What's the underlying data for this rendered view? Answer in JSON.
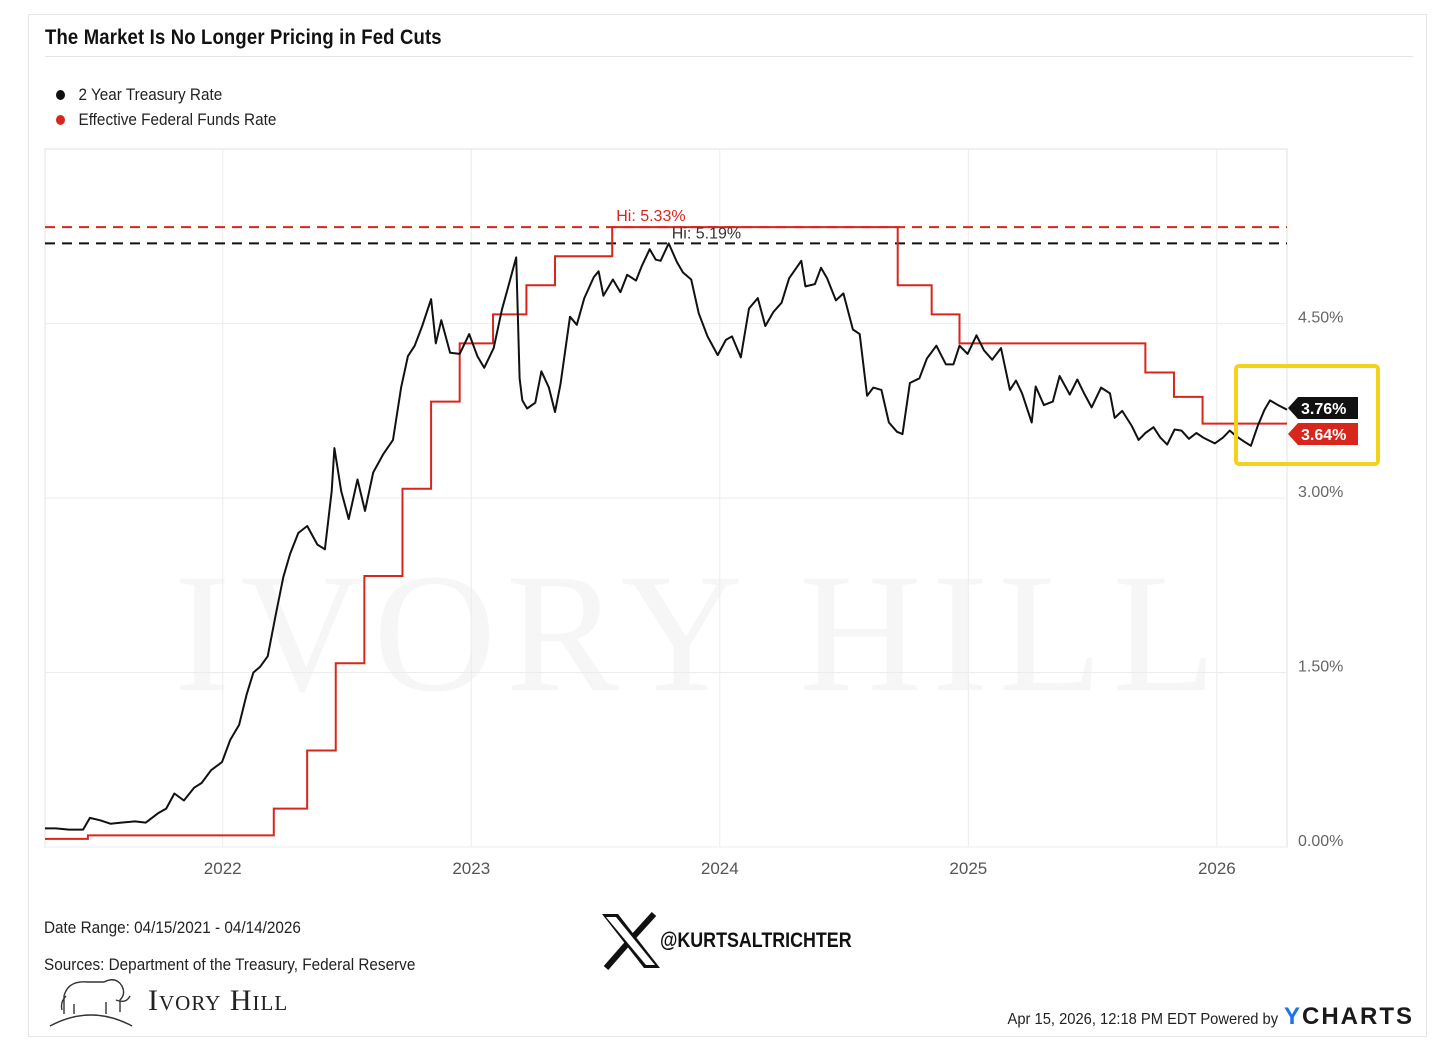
{
  "title": "The Market Is No Longer Pricing in Fed Cuts",
  "footer": {
    "date_range": "Date Range: 04/15/2021 - 04/14/2026",
    "sources": "Sources: Department of the Treasury, Federal Reserve",
    "brand": "Ivory Hill",
    "watermark": "IVORY HILL",
    "social_handle": "@KURTSALTRICHTER",
    "timestamp": "Apr 15, 2026, 12:18 PM EDT Powered by",
    "powered_by": "YCHARTS"
  },
  "colors": {
    "treasury": "#111111",
    "fed_funds": "#d9261c",
    "highlight_box": "#f2d21b",
    "grid": "#eeeeee"
  },
  "chart_data": {
    "type": "line",
    "title": "The Market Is No Longer Pricing in Fed Cuts",
    "xlim": [
      "2021-04-15",
      "2026-04-14"
    ],
    "ylim": [
      0,
      6.0
    ],
    "grid": true,
    "legend_placement": "top-left",
    "x_ticks": [
      "2022",
      "2023",
      "2024",
      "2025",
      "2026"
    ],
    "y_ticks": [
      {
        "value": 0,
        "label": "0.00%"
      },
      {
        "value": 1.5,
        "label": "1.50%"
      },
      {
        "value": 3.0,
        "label": "3.00%"
      },
      {
        "value": 4.5,
        "label": "4.50%"
      }
    ],
    "series": [
      {
        "name": "2 Year Treasury Rate",
        "color": "#111111",
        "high": {
          "value": 5.19,
          "label": "Hi: 5.19%"
        },
        "last": {
          "value": 3.76,
          "label": "3.76%"
        },
        "points": [
          [
            "2021-04-15",
            0.16
          ],
          [
            "2021-05-01",
            0.16
          ],
          [
            "2021-05-20",
            0.15
          ],
          [
            "2021-06-10",
            0.15
          ],
          [
            "2021-06-20",
            0.25
          ],
          [
            "2021-07-05",
            0.23
          ],
          [
            "2021-07-20",
            0.2
          ],
          [
            "2021-08-05",
            0.21
          ],
          [
            "2021-08-25",
            0.22
          ],
          [
            "2021-09-10",
            0.21
          ],
          [
            "2021-09-28",
            0.29
          ],
          [
            "2021-10-10",
            0.33
          ],
          [
            "2021-10-22",
            0.46
          ],
          [
            "2021-11-05",
            0.4
          ],
          [
            "2021-11-20",
            0.51
          ],
          [
            "2021-12-01",
            0.55
          ],
          [
            "2021-12-15",
            0.66
          ],
          [
            "2021-12-31",
            0.73
          ],
          [
            "2022-01-12",
            0.92
          ],
          [
            "2022-01-25",
            1.05
          ],
          [
            "2022-02-05",
            1.31
          ],
          [
            "2022-02-15",
            1.5
          ],
          [
            "2022-02-25",
            1.55
          ],
          [
            "2022-03-08",
            1.64
          ],
          [
            "2022-03-20",
            2.0
          ],
          [
            "2022-03-31",
            2.32
          ],
          [
            "2022-04-10",
            2.52
          ],
          [
            "2022-04-22",
            2.7
          ],
          [
            "2022-05-05",
            2.76
          ],
          [
            "2022-05-20",
            2.6
          ],
          [
            "2022-05-31",
            2.56
          ],
          [
            "2022-06-10",
            3.06
          ],
          [
            "2022-06-14",
            3.43
          ],
          [
            "2022-06-24",
            3.06
          ],
          [
            "2022-07-05",
            2.82
          ],
          [
            "2022-07-18",
            3.16
          ],
          [
            "2022-07-29",
            2.89
          ],
          [
            "2022-08-10",
            3.22
          ],
          [
            "2022-08-25",
            3.38
          ],
          [
            "2022-09-08",
            3.5
          ],
          [
            "2022-09-20",
            3.95
          ],
          [
            "2022-09-30",
            4.22
          ],
          [
            "2022-10-10",
            4.31
          ],
          [
            "2022-10-21",
            4.48
          ],
          [
            "2022-11-03",
            4.71
          ],
          [
            "2022-11-10",
            4.33
          ],
          [
            "2022-11-18",
            4.53
          ],
          [
            "2022-12-01",
            4.25
          ],
          [
            "2022-12-15",
            4.24
          ],
          [
            "2022-12-29",
            4.41
          ],
          [
            "2023-01-10",
            4.22
          ],
          [
            "2023-01-20",
            4.12
          ],
          [
            "2023-02-03",
            4.29
          ],
          [
            "2023-02-15",
            4.62
          ],
          [
            "2023-02-24",
            4.81
          ],
          [
            "2023-03-08",
            5.07
          ],
          [
            "2023-03-13",
            4.03
          ],
          [
            "2023-03-17",
            3.84
          ],
          [
            "2023-03-24",
            3.77
          ],
          [
            "2023-04-05",
            3.82
          ],
          [
            "2023-04-14",
            4.09
          ],
          [
            "2023-04-25",
            3.95
          ],
          [
            "2023-05-04",
            3.74
          ],
          [
            "2023-05-12",
            3.98
          ],
          [
            "2023-05-26",
            4.56
          ],
          [
            "2023-06-05",
            4.49
          ],
          [
            "2023-06-16",
            4.72
          ],
          [
            "2023-06-30",
            4.9
          ],
          [
            "2023-07-07",
            4.95
          ],
          [
            "2023-07-14",
            4.74
          ],
          [
            "2023-07-28",
            4.88
          ],
          [
            "2023-08-08",
            4.77
          ],
          [
            "2023-08-18",
            4.92
          ],
          [
            "2023-08-31",
            4.87
          ],
          [
            "2023-09-08",
            4.99
          ],
          [
            "2023-09-20",
            5.14
          ],
          [
            "2023-09-29",
            5.05
          ],
          [
            "2023-10-06",
            5.04
          ],
          [
            "2023-10-18",
            5.19
          ],
          [
            "2023-10-30",
            5.03
          ],
          [
            "2023-11-08",
            4.94
          ],
          [
            "2023-11-20",
            4.88
          ],
          [
            "2023-12-01",
            4.59
          ],
          [
            "2023-12-14",
            4.39
          ],
          [
            "2023-12-29",
            4.23
          ],
          [
            "2024-01-10",
            4.36
          ],
          [
            "2024-01-19",
            4.39
          ],
          [
            "2024-02-01",
            4.21
          ],
          [
            "2024-02-13",
            4.63
          ],
          [
            "2024-02-26",
            4.72
          ],
          [
            "2024-03-08",
            4.48
          ],
          [
            "2024-03-20",
            4.6
          ],
          [
            "2024-04-01",
            4.68
          ],
          [
            "2024-04-12",
            4.89
          ],
          [
            "2024-04-30",
            5.04
          ],
          [
            "2024-05-06",
            4.82
          ],
          [
            "2024-05-20",
            4.84
          ],
          [
            "2024-05-29",
            4.98
          ],
          [
            "2024-06-07",
            4.89
          ],
          [
            "2024-06-20",
            4.7
          ],
          [
            "2024-07-01",
            4.76
          ],
          [
            "2024-07-15",
            4.45
          ],
          [
            "2024-07-25",
            4.41
          ],
          [
            "2024-08-05",
            3.88
          ],
          [
            "2024-08-14",
            3.95
          ],
          [
            "2024-08-26",
            3.93
          ],
          [
            "2024-09-06",
            3.65
          ],
          [
            "2024-09-18",
            3.57
          ],
          [
            "2024-09-26",
            3.55
          ],
          [
            "2024-10-07",
            3.99
          ],
          [
            "2024-10-21",
            4.03
          ],
          [
            "2024-11-01",
            4.2
          ],
          [
            "2024-11-15",
            4.31
          ],
          [
            "2024-11-29",
            4.15
          ],
          [
            "2024-12-10",
            4.15
          ],
          [
            "2024-12-19",
            4.31
          ],
          [
            "2024-12-31",
            4.24
          ],
          [
            "2025-01-13",
            4.4
          ],
          [
            "2025-01-24",
            4.27
          ],
          [
            "2025-02-05",
            4.19
          ],
          [
            "2025-02-18",
            4.29
          ],
          [
            "2025-03-03",
            3.93
          ],
          [
            "2025-03-12",
            4.01
          ],
          [
            "2025-03-21",
            3.9
          ],
          [
            "2025-04-04",
            3.65
          ],
          [
            "2025-04-10",
            3.96
          ],
          [
            "2025-04-22",
            3.8
          ],
          [
            "2025-05-05",
            3.83
          ],
          [
            "2025-05-15",
            4.05
          ],
          [
            "2025-05-30",
            3.89
          ],
          [
            "2025-06-10",
            4.02
          ],
          [
            "2025-06-20",
            3.9
          ],
          [
            "2025-07-01",
            3.78
          ],
          [
            "2025-07-15",
            3.95
          ],
          [
            "2025-07-28",
            3.9
          ],
          [
            "2025-08-04",
            3.69
          ],
          [
            "2025-08-15",
            3.75
          ],
          [
            "2025-08-29",
            3.62
          ],
          [
            "2025-09-08",
            3.5
          ],
          [
            "2025-09-18",
            3.56
          ],
          [
            "2025-09-30",
            3.61
          ],
          [
            "2025-10-10",
            3.52
          ],
          [
            "2025-10-20",
            3.46
          ],
          [
            "2025-10-31",
            3.59
          ],
          [
            "2025-11-10",
            3.58
          ],
          [
            "2025-11-21",
            3.51
          ],
          [
            "2025-12-02",
            3.56
          ],
          [
            "2025-12-12",
            3.52
          ],
          [
            "2025-12-29",
            3.47
          ],
          [
            "2026-01-10",
            3.52
          ],
          [
            "2026-01-20",
            3.58
          ],
          [
            "2026-01-30",
            3.53
          ],
          [
            "2026-02-09",
            3.49
          ],
          [
            "2026-02-20",
            3.45
          ],
          [
            "2026-03-02",
            3.62
          ],
          [
            "2026-03-12",
            3.76
          ],
          [
            "2026-03-20",
            3.84
          ],
          [
            "2026-04-01",
            3.8
          ],
          [
            "2026-04-14",
            3.76
          ]
        ]
      },
      {
        "name": "Effective Federal Funds Rate",
        "color": "#d9261c",
        "high": {
          "value": 5.33,
          "label": "Hi: 5.33%"
        },
        "last": {
          "value": 3.64,
          "label": "3.64%"
        },
        "steps": [
          [
            "2021-04-15",
            0.07
          ],
          [
            "2021-06-17",
            0.1
          ],
          [
            "2022-03-17",
            0.33
          ],
          [
            "2022-05-05",
            0.83
          ],
          [
            "2022-06-16",
            1.58
          ],
          [
            "2022-07-28",
            2.33
          ],
          [
            "2022-09-22",
            3.08
          ],
          [
            "2022-11-03",
            3.83
          ],
          [
            "2022-12-15",
            4.33
          ],
          [
            "2023-02-02",
            4.58
          ],
          [
            "2023-03-23",
            4.83
          ],
          [
            "2023-05-04",
            5.08
          ],
          [
            "2023-07-27",
            5.33
          ],
          [
            "2024-09-19",
            4.83
          ],
          [
            "2024-11-08",
            4.58
          ],
          [
            "2024-12-19",
            4.33
          ],
          [
            "2025-09-18",
            4.08
          ],
          [
            "2025-10-30",
            3.87
          ],
          [
            "2025-12-11",
            3.64
          ],
          [
            "2026-04-14",
            3.64
          ]
        ]
      }
    ]
  }
}
